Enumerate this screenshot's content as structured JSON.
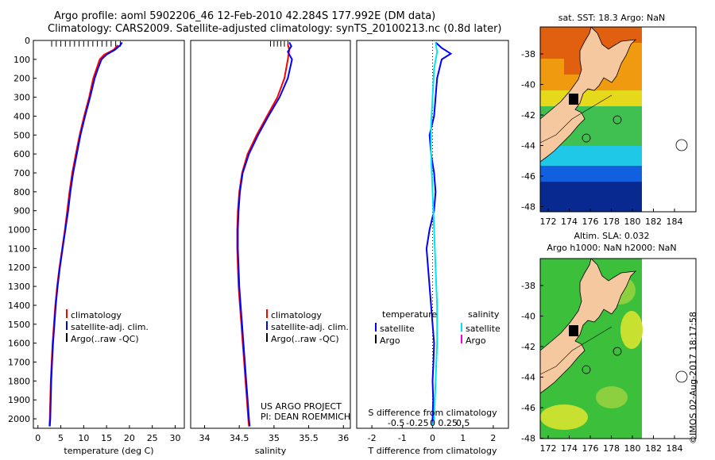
{
  "header": {
    "title_line1": "Argo profile: aoml 5902206_46 12-Feb-2010 42.284S 177.992E (DM data)",
    "title_line2": "Climatology: CARS2009. Satellite-adjusted climatology: synTS_20100213.nc (0.8d later)"
  },
  "chart_data": [
    {
      "type": "line",
      "xlabel": "temperature (deg C)",
      "xlim": [
        -1,
        32
      ],
      "xticks": [
        0,
        5,
        10,
        15,
        20,
        25,
        30
      ],
      "ylim": [
        0,
        2050
      ],
      "yticks": [
        0,
        100,
        200,
        300,
        400,
        500,
        600,
        700,
        800,
        900,
        1000,
        1100,
        1200,
        1300,
        1400,
        1500,
        1600,
        1700,
        1800,
        1900,
        2000
      ],
      "y_reversed": true,
      "legend": [
        "climatology",
        "satellite-adj. clim.",
        "Argo(..raw -QC)"
      ],
      "series": [
        {
          "name": "climatology",
          "color": "#ff0000",
          "points": [
            [
              17.5,
              25
            ],
            [
              16.5,
              50
            ],
            [
              14.5,
              75
            ],
            [
              13.5,
              100
            ],
            [
              12.8,
              150
            ],
            [
              12.1,
              200
            ],
            [
              11.2,
              300
            ],
            [
              10.1,
              400
            ],
            [
              9.1,
              500
            ],
            [
              8.3,
              600
            ],
            [
              7.5,
              700
            ],
            [
              6.9,
              800
            ],
            [
              6.4,
              900
            ],
            [
              5.9,
              1000
            ],
            [
              5.3,
              1100
            ],
            [
              4.7,
              1200
            ],
            [
              4.2,
              1300
            ],
            [
              3.8,
              1400
            ],
            [
              3.5,
              1500
            ],
            [
              3.2,
              1600
            ],
            [
              3.0,
              1700
            ],
            [
              2.8,
              1800
            ],
            [
              2.7,
              1900
            ],
            [
              2.6,
              2000
            ],
            [
              2.5,
              2040
            ]
          ]
        },
        {
          "name": "satellite-adj. clim.",
          "color": "#0000ff",
          "points": [
            [
              18.4,
              10
            ],
            [
              18.0,
              25
            ],
            [
              16.8,
              50
            ],
            [
              15.0,
              75
            ],
            [
              13.9,
              100
            ],
            [
              13.1,
              150
            ],
            [
              12.4,
              200
            ],
            [
              11.4,
              300
            ],
            [
              10.3,
              400
            ],
            [
              9.3,
              500
            ],
            [
              8.5,
              600
            ],
            [
              7.7,
              700
            ],
            [
              7.1,
              800
            ],
            [
              6.6,
              900
            ],
            [
              6.0,
              1000
            ],
            [
              5.4,
              1100
            ],
            [
              4.8,
              1200
            ],
            [
              4.3,
              1300
            ],
            [
              3.9,
              1400
            ],
            [
              3.6,
              1500
            ],
            [
              3.3,
              1600
            ],
            [
              3.1,
              1700
            ],
            [
              2.9,
              1800
            ],
            [
              2.8,
              1900
            ],
            [
              2.7,
              2000
            ],
            [
              2.6,
              2040
            ]
          ]
        }
      ],
      "argo_marks": {
        "color": "#000000",
        "depth": 20,
        "x": [
          3,
          4,
          5,
          6,
          7,
          8,
          9,
          10,
          11,
          12,
          13,
          14,
          15,
          16,
          17,
          18
        ]
      }
    },
    {
      "type": "line",
      "xlabel": "salinity",
      "xlim": [
        33.8,
        36.1
      ],
      "xticks": [
        34,
        34.5,
        35,
        35.5,
        36
      ],
      "ylim": [
        0,
        2050
      ],
      "y_reversed": true,
      "legend": [
        "climatology",
        "satellite-adj. clim.",
        "Argo(..raw -QC)"
      ],
      "annotations": [
        "US ARGO PROJECT",
        "PI: DEAN ROEMMICH"
      ],
      "series": [
        {
          "name": "climatology",
          "color": "#ff0000",
          "points": [
            [
              35.2,
              20
            ],
            [
              35.22,
              50
            ],
            [
              35.2,
              100
            ],
            [
              35.15,
              200
            ],
            [
              35.05,
              300
            ],
            [
              34.9,
              400
            ],
            [
              34.75,
              500
            ],
            [
              34.62,
              600
            ],
            [
              34.54,
              700
            ],
            [
              34.5,
              800
            ],
            [
              34.48,
              900
            ],
            [
              34.47,
              1000
            ],
            [
              34.47,
              1100
            ],
            [
              34.48,
              1200
            ],
            [
              34.49,
              1300
            ],
            [
              34.51,
              1400
            ],
            [
              34.53,
              1500
            ],
            [
              34.55,
              1600
            ],
            [
              34.57,
              1700
            ],
            [
              34.59,
              1800
            ],
            [
              34.61,
              1900
            ],
            [
              34.63,
              2000
            ],
            [
              34.64,
              2040
            ]
          ]
        },
        {
          "name": "satellite-adj. clim.",
          "color": "#0000ff",
          "points": [
            [
              35.22,
              10
            ],
            [
              35.25,
              30
            ],
            [
              35.2,
              60
            ],
            [
              35.26,
              100
            ],
            [
              35.2,
              200
            ],
            [
              35.08,
              300
            ],
            [
              34.92,
              400
            ],
            [
              34.77,
              500
            ],
            [
              34.64,
              600
            ],
            [
              34.55,
              700
            ],
            [
              34.51,
              800
            ],
            [
              34.49,
              900
            ],
            [
              34.48,
              1000
            ],
            [
              34.48,
              1100
            ],
            [
              34.49,
              1200
            ],
            [
              34.5,
              1300
            ],
            [
              34.52,
              1400
            ],
            [
              34.54,
              1500
            ],
            [
              34.56,
              1600
            ],
            [
              34.58,
              1700
            ],
            [
              34.6,
              1800
            ],
            [
              34.62,
              1900
            ],
            [
              34.64,
              2000
            ],
            [
              34.65,
              2040
            ]
          ]
        }
      ],
      "argo_marks": {
        "color": "#000000",
        "depth": 20,
        "x": [
          34.95,
          35.0,
          35.05,
          35.1,
          35.15,
          35.2
        ]
      }
    },
    {
      "type": "line",
      "xlabel": "T difference from climatology",
      "x2label": "S difference from climatology",
      "xlim": [
        -2.5,
        2.5
      ],
      "xticks": [
        -2,
        -1,
        0,
        1,
        2
      ],
      "x2ticks": [
        "-0.5",
        "-0.25",
        "0",
        "0.25",
        "0.5"
      ],
      "ylim": [
        0,
        2050
      ],
      "y_reversed": true,
      "legend_headers": [
        "temperature",
        "salinity"
      ],
      "legend": [
        "satellite",
        "Argo",
        "satellite",
        "Argo"
      ],
      "legend_colors": [
        "#0000ff",
        "#000000",
        "#00e5ee",
        "#ee00ee"
      ],
      "series": [
        {
          "name": "temperature satellite",
          "color": "#0000ff",
          "points": [
            [
              0.1,
              10
            ],
            [
              0.3,
              40
            ],
            [
              0.6,
              70
            ],
            [
              0.3,
              100
            ],
            [
              0.15,
              200
            ],
            [
              0.1,
              300
            ],
            [
              0.05,
              400
            ],
            [
              -0.1,
              500
            ],
            [
              -0.05,
              600
            ],
            [
              0.05,
              700
            ],
            [
              0.1,
              800
            ],
            [
              0.05,
              900
            ],
            [
              -0.1,
              1000
            ],
            [
              -0.2,
              1100
            ],
            [
              -0.15,
              1200
            ],
            [
              -0.1,
              1300
            ],
            [
              -0.05,
              1400
            ],
            [
              0.0,
              1500
            ],
            [
              0.05,
              1600
            ],
            [
              0.03,
              1700
            ],
            [
              0.0,
              1800
            ],
            [
              0.02,
              1900
            ],
            [
              0.0,
              2000
            ],
            [
              0.0,
              2040
            ]
          ]
        },
        {
          "name": "salinity satellite",
          "color": "#00e5ee",
          "points": [
            [
              0.1,
              10
            ],
            [
              0.15,
              60
            ],
            [
              0.05,
              150
            ],
            [
              0.0,
              300
            ],
            [
              -0.05,
              450
            ],
            [
              -0.05,
              600
            ],
            [
              0.0,
              800
            ],
            [
              0.05,
              1000
            ],
            [
              0.1,
              1200
            ],
            [
              0.15,
              1400
            ],
            [
              0.15,
              1600
            ],
            [
              0.1,
              1800
            ],
            [
              0.05,
              2000
            ],
            [
              0.0,
              2040
            ]
          ]
        }
      ]
    }
  ],
  "maps": [
    {
      "title_lines": [
        "sat. SST: 18.3 Argo: NaN"
      ],
      "lat_ticks": [
        "-38",
        "-40",
        "-42",
        "-44",
        "-46",
        "-48"
      ],
      "lon_ticks": [
        "172",
        "174",
        "176",
        "178",
        "180",
        "182",
        "184"
      ],
      "colors": {
        "land": "#f5c8a0",
        "warm": "#e06010",
        "orange": "#f09a10",
        "yellow": "#e6d81a",
        "green": "#40c050",
        "cyan": "#20c8e8",
        "blue": "#1060e0",
        "deep": "#082a90"
      }
    },
    {
      "title_lines": [
        "Altim. SLA: 0.032",
        "Argo h1000: NaN h2000: NaN"
      ],
      "lat_ticks": [
        "-38",
        "-40",
        "-42",
        "-44",
        "-46",
        "-48"
      ],
      "lon_ticks": [
        "172",
        "174",
        "176",
        "178",
        "180",
        "182",
        "184"
      ],
      "colors": {
        "land": "#f5c8a0",
        "green": "#3cc03c",
        "light": "#8cd040",
        "yellow": "#c8e030"
      }
    }
  ],
  "footer": {
    "stamp": "©IMOS 02-Aug-2017 18:17:58"
  }
}
